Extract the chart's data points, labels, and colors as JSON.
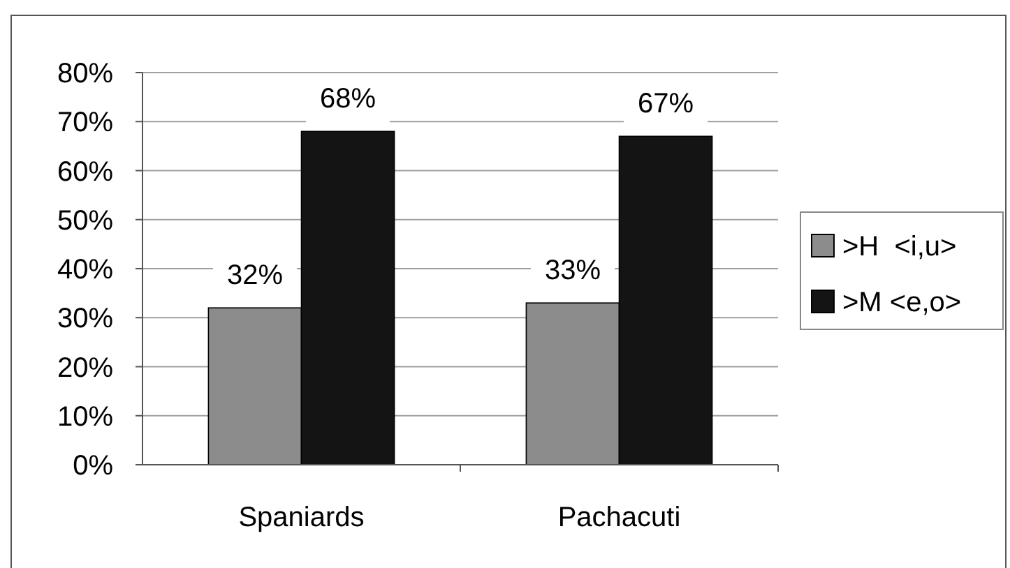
{
  "chart_data": {
    "type": "bar",
    "categories": [
      "Spaniards",
      "Pachacuti"
    ],
    "series": [
      {
        "name": ">H  <i,u>",
        "color": "#8c8c8c",
        "values": [
          32,
          33
        ],
        "value_labels": [
          "32%",
          "33%"
        ]
      },
      {
        "name": ">M <e,o>",
        "color": "#141414",
        "values": [
          68,
          67
        ],
        "value_labels": [
          "68%",
          "67%"
        ]
      }
    ],
    "ylim": [
      0,
      80
    ],
    "yticks": [
      {
        "value": 0,
        "label": "0%"
      },
      {
        "value": 10,
        "label": "10%"
      },
      {
        "value": 20,
        "label": "20%"
      },
      {
        "value": 30,
        "label": "30%"
      },
      {
        "value": 40,
        "label": "40%"
      },
      {
        "value": 50,
        "label": "50%"
      },
      {
        "value": 60,
        "label": "60%"
      },
      {
        "value": 70,
        "label": "70%"
      },
      {
        "value": 80,
        "label": "80%"
      }
    ],
    "grid": "y",
    "legend": "right"
  }
}
